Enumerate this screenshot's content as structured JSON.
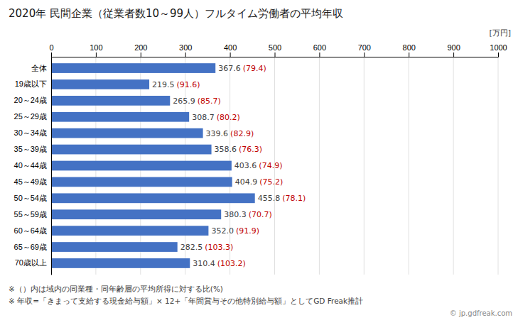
{
  "chart_data": {
    "type": "bar",
    "orientation": "horizontal",
    "title": "2020年 民間企業（従業者数10～99人）フルタイム労働者の平均年収",
    "unit_label": "[万円]",
    "categories": [
      "全体",
      "19歳以下",
      "20～24歳",
      "25～29歳",
      "30～34歳",
      "35～39歳",
      "40～44歳",
      "45～49歳",
      "50～54歳",
      "55～59歳",
      "60～64歳",
      "65～69歳",
      "70歳以上"
    ],
    "values": [
      367.6,
      219.5,
      265.9,
      308.7,
      339.6,
      358.6,
      403.6,
      404.9,
      455.8,
      380.3,
      352.0,
      282.5,
      310.4
    ],
    "value_labels": [
      "367.6",
      "219.5",
      "265.9",
      "308.7",
      "339.6",
      "358.6",
      "403.6",
      "404.9",
      "455.8",
      "380.3",
      "352.0",
      "282.5",
      "310.4"
    ],
    "color": "#4472C4",
    "data_labels": true,
    "ratios": {
      "values": [
        79.4,
        91.6,
        85.7,
        80.2,
        82.9,
        76.3,
        74.9,
        75.2,
        78.1,
        70.7,
        91.9,
        103.3,
        103.2
      ],
      "value_labels": [
        "(79.4)",
        "(91.6)",
        "(85.7)",
        "(80.2)",
        "(82.9)",
        "(76.3)",
        "(74.9)",
        "(75.2)",
        "(78.1)",
        "(70.7)",
        "(91.9)",
        "(103.3)",
        "(103.2)"
      ],
      "color": "#C00000"
    },
    "xlim": [
      0,
      1000
    ],
    "xticks": [
      0,
      100,
      200,
      300,
      400,
      500,
      600,
      700,
      800,
      900,
      1000
    ],
    "grid": true,
    "footnotes": [
      "※（）内は域内の同業種・同年齢層の平均所得に対する比(%)",
      "※ 年収=「きまって支給する現金給与額」× 12+「年間賞与その他特別給与額」としてGD Freak推計"
    ],
    "watermark": "© jp.gdfreak.com"
  }
}
